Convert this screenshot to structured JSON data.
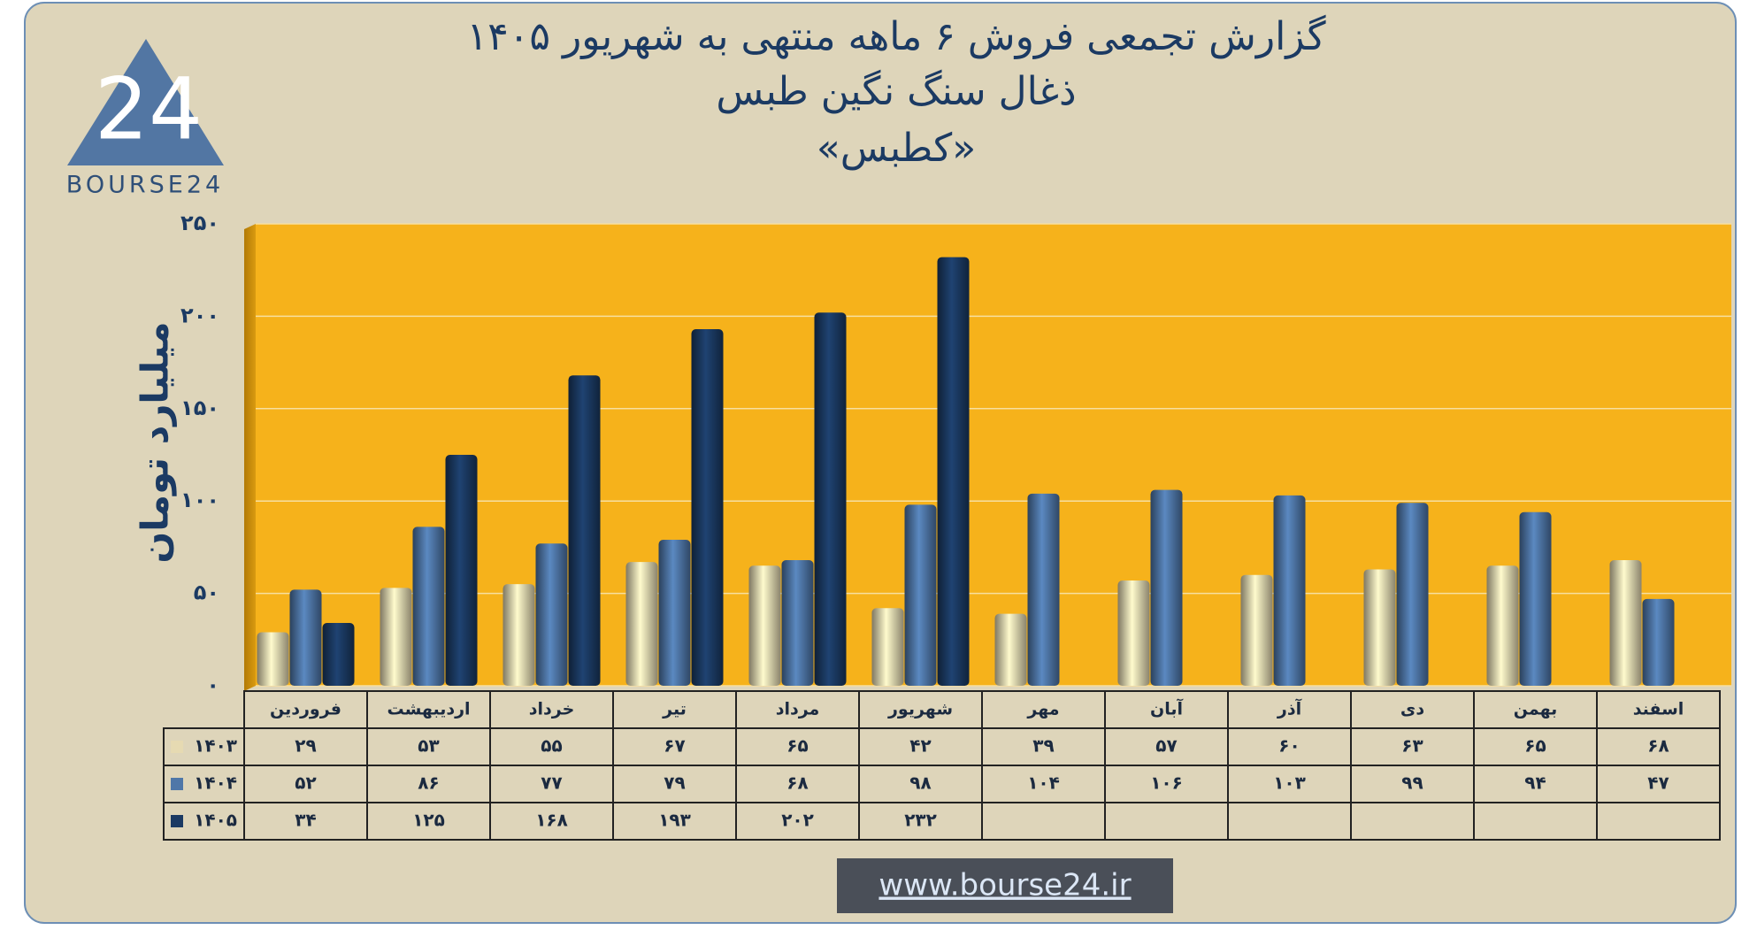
{
  "chart_data": {
    "type": "bar",
    "title": "گزارش تجمعی فروش ۶ ماهه منتهی به شهریور ۱۴۰۵",
    "subtitle": "ذغال سنگ نگین طبس",
    "symbol": "«کطبس»",
    "y_label": "میلیارد تومان",
    "logo_text": "BOURSE24",
    "logo_mark": "24",
    "website": "www.bourse24.ir",
    "categories": [
      "فروردین",
      "اردیبهشت",
      "خرداد",
      "تیر",
      "مرداد",
      "شهریور",
      "مهر",
      "آبان",
      "آذر",
      "دی",
      "بهمن",
      "اسفند"
    ],
    "series": [
      {
        "name": "۱۴۰۳",
        "color": "#e6dab2",
        "values": [
          29,
          53,
          55,
          67,
          65,
          42,
          39,
          57,
          60,
          63,
          65,
          68
        ],
        "value_labels": [
          "۲۹",
          "۵۳",
          "۵۵",
          "۶۷",
          "۶۵",
          "۴۲",
          "۳۹",
          "۵۷",
          "۶۰",
          "۶۳",
          "۶۵",
          "۶۸"
        ]
      },
      {
        "name": "۱۴۰۴",
        "color": "#4f77a8",
        "values": [
          52,
          86,
          77,
          79,
          68,
          98,
          104,
          106,
          103,
          99,
          94,
          47
        ],
        "value_labels": [
          "۵۲",
          "۸۶",
          "۷۷",
          "۷۹",
          "۶۸",
          "۹۸",
          "۱۰۴",
          "۱۰۶",
          "۱۰۳",
          "۹۹",
          "۹۴",
          "۴۷"
        ]
      },
      {
        "name": "۱۴۰۵",
        "color": "#1b3a63",
        "values": [
          34,
          125,
          168,
          193,
          202,
          232,
          null,
          null,
          null,
          null,
          null,
          null
        ],
        "value_labels": [
          "۳۴",
          "۱۲۵",
          "۱۶۸",
          "۱۹۳",
          "۲۰۲",
          "۲۳۲",
          null,
          null,
          null,
          null,
          null,
          null
        ]
      }
    ],
    "ylim": [
      0,
      250
    ],
    "yticks": [
      {
        "value": 0,
        "label": "۰"
      },
      {
        "value": 50,
        "label": "۵۰"
      },
      {
        "value": 100,
        "label": "۱۰۰"
      },
      {
        "value": 150,
        "label": "۱۵۰"
      },
      {
        "value": 200,
        "label": "۲۰۰"
      },
      {
        "value": 250,
        "label": "۲۵۰"
      }
    ],
    "grid": true,
    "plot_background": "#f6b21b"
  }
}
